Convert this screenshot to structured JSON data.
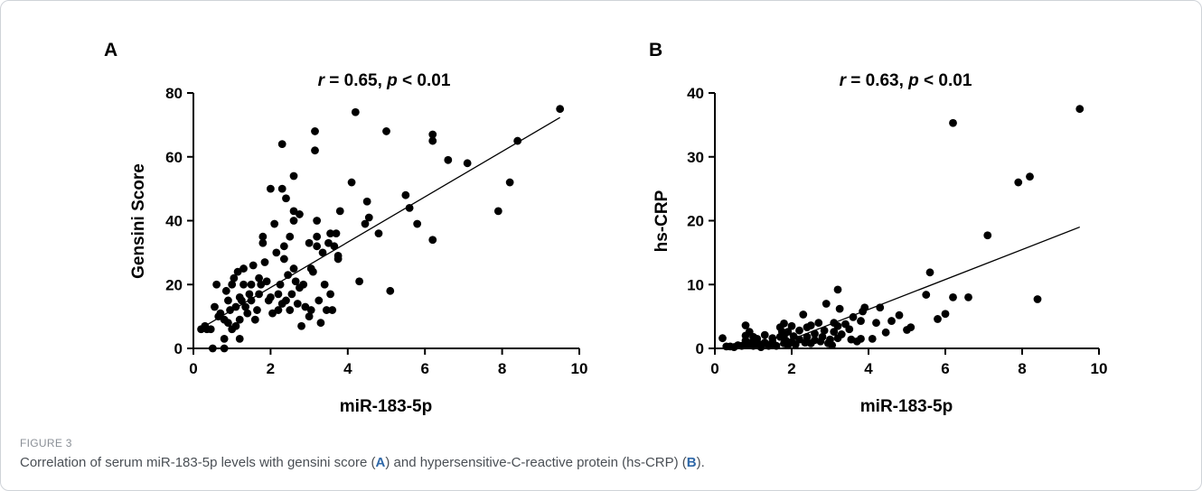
{
  "figure": {
    "label": "FIGURE 3",
    "caption_parts": {
      "p1": "Correlation of serum miR-183-5p levels with gensini score (",
      "a": "A",
      "p2": ") and hypersensitive-C-reactive protein (hs-CRP) (",
      "b": "B",
      "p3": ")."
    }
  },
  "chart_data": [
    {
      "type": "scatter",
      "panel_letter": "A",
      "title": "r = 0.65, p < 0.01",
      "title_parts": {
        "r": "r",
        "r_value": " = 0.65, ",
        "p": "p",
        "p_value": " < 0.01"
      },
      "xlabel": "miR-183-5p",
      "ylabel": "Gensini Score",
      "xlim": [
        0,
        10
      ],
      "ylim": [
        0,
        80
      ],
      "xticks": [
        0,
        2,
        4,
        6,
        8,
        10
      ],
      "yticks": [
        0,
        20,
        40,
        60,
        80
      ],
      "grid": false,
      "trendline": [
        [
          0.2,
          6.3
        ],
        [
          9.5,
          72.3
        ]
      ],
      "points": [
        [
          0.2,
          6
        ],
        [
          0.3,
          7
        ],
        [
          0.35,
          6
        ],
        [
          0.45,
          6
        ],
        [
          0.5,
          0
        ],
        [
          0.55,
          13
        ],
        [
          0.6,
          20
        ],
        [
          0.65,
          10
        ],
        [
          0.7,
          11
        ],
        [
          0.8,
          0
        ],
        [
          0.8,
          3
        ],
        [
          0.8,
          9
        ],
        [
          0.85,
          18
        ],
        [
          0.9,
          15
        ],
        [
          0.9,
          8
        ],
        [
          0.95,
          12
        ],
        [
          1.0,
          20
        ],
        [
          1.0,
          6
        ],
        [
          1.05,
          22
        ],
        [
          1.1,
          13
        ],
        [
          1.1,
          7
        ],
        [
          1.15,
          24
        ],
        [
          1.2,
          3
        ],
        [
          1.2,
          9
        ],
        [
          1.2,
          16
        ],
        [
          1.25,
          15
        ],
        [
          1.3,
          20
        ],
        [
          1.3,
          25
        ],
        [
          1.35,
          13
        ],
        [
          1.4,
          11
        ],
        [
          1.45,
          17
        ],
        [
          1.5,
          15
        ],
        [
          1.5,
          20
        ],
        [
          1.55,
          26
        ],
        [
          1.6,
          9
        ],
        [
          1.65,
          12
        ],
        [
          1.7,
          22
        ],
        [
          1.7,
          17
        ],
        [
          1.75,
          20
        ],
        [
          1.8,
          33
        ],
        [
          1.8,
          35
        ],
        [
          1.85,
          27
        ],
        [
          1.9,
          21
        ],
        [
          1.95,
          15
        ],
        [
          2.0,
          50
        ],
        [
          2.0,
          16
        ],
        [
          2.05,
          11
        ],
        [
          2.1,
          39
        ],
        [
          2.15,
          30
        ],
        [
          2.2,
          17
        ],
        [
          2.2,
          12
        ],
        [
          2.25,
          20
        ],
        [
          2.3,
          50
        ],
        [
          2.3,
          64
        ],
        [
          2.3,
          14
        ],
        [
          2.35,
          28
        ],
        [
          2.35,
          32
        ],
        [
          2.4,
          15
        ],
        [
          2.4,
          47
        ],
        [
          2.45,
          23
        ],
        [
          2.5,
          12
        ],
        [
          2.5,
          35
        ],
        [
          2.55,
          17
        ],
        [
          2.6,
          54
        ],
        [
          2.6,
          43
        ],
        [
          2.6,
          40
        ],
        [
          2.6,
          25
        ],
        [
          2.65,
          21
        ],
        [
          2.7,
          14
        ],
        [
          2.75,
          42
        ],
        [
          2.75,
          19
        ],
        [
          2.8,
          7
        ],
        [
          2.85,
          20
        ],
        [
          2.9,
          13
        ],
        [
          3.0,
          33
        ],
        [
          3.0,
          10
        ],
        [
          3.05,
          12
        ],
        [
          3.05,
          25
        ],
        [
          3.1,
          24
        ],
        [
          3.15,
          62
        ],
        [
          3.15,
          68
        ],
        [
          3.2,
          40
        ],
        [
          3.2,
          35
        ],
        [
          3.2,
          32
        ],
        [
          3.25,
          15
        ],
        [
          3.3,
          8
        ],
        [
          3.35,
          30
        ],
        [
          3.4,
          20
        ],
        [
          3.45,
          12
        ],
        [
          3.5,
          33
        ],
        [
          3.55,
          17
        ],
        [
          3.55,
          36
        ],
        [
          3.6,
          12
        ],
        [
          3.65,
          32
        ],
        [
          3.7,
          36
        ],
        [
          3.75,
          28
        ],
        [
          3.75,
          29
        ],
        [
          3.8,
          43
        ],
        [
          4.1,
          52
        ],
        [
          4.2,
          74
        ],
        [
          4.3,
          21
        ],
        [
          4.45,
          39
        ],
        [
          4.5,
          46
        ],
        [
          4.55,
          41
        ],
        [
          4.8,
          36
        ],
        [
          5.0,
          68
        ],
        [
          5.1,
          18
        ],
        [
          5.5,
          48
        ],
        [
          5.6,
          44
        ],
        [
          5.8,
          39
        ],
        [
          6.2,
          67
        ],
        [
          6.2,
          65
        ],
        [
          6.2,
          34
        ],
        [
          6.6,
          59
        ],
        [
          7.1,
          58
        ],
        [
          7.9,
          43
        ],
        [
          8.2,
          52
        ],
        [
          8.4,
          65
        ],
        [
          9.5,
          75
        ]
      ]
    },
    {
      "type": "scatter",
      "panel_letter": "B",
      "title": "r = 0.63, p < 0.01",
      "title_parts": {
        "r": "r",
        "r_value": " = 0.63, ",
        "p": "p",
        "p_value": " < 0.01"
      },
      "xlabel": "miR-183-5p",
      "ylabel": "hs-CRP",
      "xlim": [
        0,
        10
      ],
      "ylim": [
        0,
        40
      ],
      "xticks": [
        0,
        2,
        4,
        6,
        8,
        10
      ],
      "yticks": [
        0,
        10,
        20,
        30,
        40
      ],
      "grid": false,
      "trendline": [
        [
          1.4,
          0
        ],
        [
          9.5,
          19.0
        ]
      ],
      "points": [
        [
          0.2,
          1.6
        ],
        [
          0.3,
          0.3
        ],
        [
          0.4,
          0.3
        ],
        [
          0.5,
          0.2
        ],
        [
          0.6,
          0.5
        ],
        [
          0.7,
          0.4
        ],
        [
          0.8,
          3.6
        ],
        [
          0.8,
          2.0
        ],
        [
          0.8,
          1.2
        ],
        [
          0.85,
          0.5
        ],
        [
          0.9,
          2.6
        ],
        [
          0.9,
          0.8
        ],
        [
          1.0,
          1.8
        ],
        [
          1.0,
          1.2
        ],
        [
          1.0,
          0.4
        ],
        [
          1.1,
          0.7
        ],
        [
          1.1,
          1.5
        ],
        [
          1.2,
          0.6
        ],
        [
          1.2,
          0.2
        ],
        [
          1.3,
          0.9
        ],
        [
          1.3,
          2.1
        ],
        [
          1.4,
          0.4
        ],
        [
          1.5,
          1.0
        ],
        [
          1.5,
          1.6
        ],
        [
          1.6,
          0.4
        ],
        [
          1.7,
          3.3
        ],
        [
          1.7,
          1.8
        ],
        [
          1.75,
          2.6
        ],
        [
          1.8,
          3.9
        ],
        [
          1.8,
          2.0
        ],
        [
          1.8,
          0.8
        ],
        [
          1.85,
          1.2
        ],
        [
          1.9,
          2.6
        ],
        [
          1.9,
          0.5
        ],
        [
          2.0,
          3.5
        ],
        [
          2.0,
          1.0
        ],
        [
          2.05,
          1.9
        ],
        [
          2.1,
          0.6
        ],
        [
          2.2,
          2.8
        ],
        [
          2.2,
          1.4
        ],
        [
          2.3,
          5.3
        ],
        [
          2.35,
          0.9
        ],
        [
          2.4,
          3.3
        ],
        [
          2.4,
          1.8
        ],
        [
          2.5,
          0.8
        ],
        [
          2.5,
          3.6
        ],
        [
          2.6,
          1.3
        ],
        [
          2.6,
          2.3
        ],
        [
          2.7,
          4.0
        ],
        [
          2.75,
          1.1
        ],
        [
          2.8,
          1.8
        ],
        [
          2.85,
          2.8
        ],
        [
          2.9,
          7.0
        ],
        [
          2.95,
          0.8
        ],
        [
          3.0,
          1.4
        ],
        [
          3.05,
          0.5
        ],
        [
          3.1,
          4.0
        ],
        [
          3.1,
          2.6
        ],
        [
          3.2,
          9.2
        ],
        [
          3.2,
          3.5
        ],
        [
          3.2,
          1.6
        ],
        [
          3.25,
          6.2
        ],
        [
          3.3,
          2.2
        ],
        [
          3.4,
          3.8
        ],
        [
          3.5,
          3.0
        ],
        [
          3.55,
          1.4
        ],
        [
          3.6,
          4.9
        ],
        [
          3.7,
          1.1
        ],
        [
          3.8,
          4.3
        ],
        [
          3.8,
          1.5
        ],
        [
          3.85,
          5.8
        ],
        [
          3.9,
          6.4
        ],
        [
          4.1,
          1.5
        ],
        [
          4.2,
          4.0
        ],
        [
          4.3,
          6.4
        ],
        [
          4.45,
          2.5
        ],
        [
          4.6,
          4.3
        ],
        [
          4.8,
          5.2
        ],
        [
          5.0,
          2.9
        ],
        [
          5.1,
          3.3
        ],
        [
          5.5,
          8.4
        ],
        [
          5.6,
          11.9
        ],
        [
          5.8,
          4.6
        ],
        [
          6.0,
          5.4
        ],
        [
          6.2,
          35.3
        ],
        [
          6.2,
          8.0
        ],
        [
          6.6,
          8.0
        ],
        [
          7.1,
          17.7
        ],
        [
          7.9,
          26.0
        ],
        [
          8.2,
          26.9
        ],
        [
          8.4,
          7.7
        ],
        [
          9.5,
          37.5
        ]
      ]
    }
  ]
}
